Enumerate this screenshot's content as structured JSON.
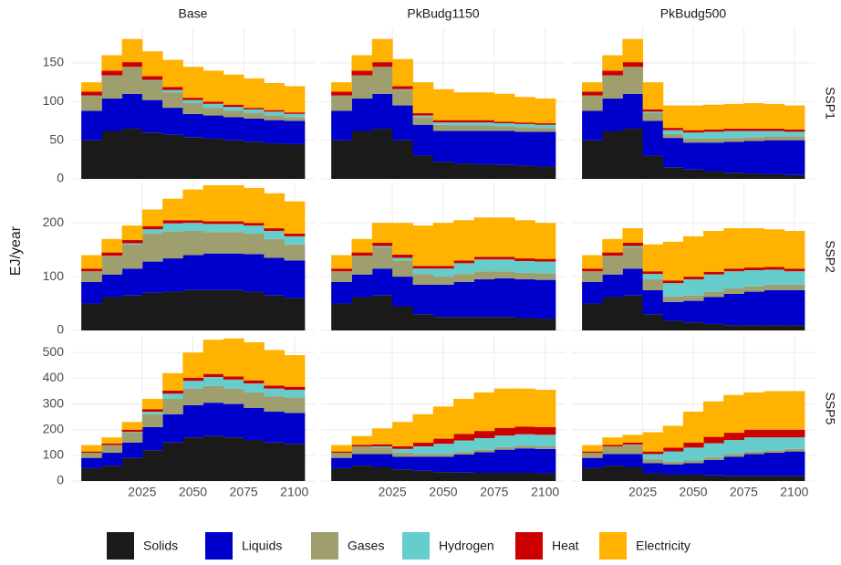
{
  "chart_data": {
    "type": "area",
    "step": true,
    "grid": true,
    "legend": "bottom",
    "ylabel": "EJ/year",
    "columns": [
      "Base",
      "PkBudg1150",
      "PkBudg500"
    ],
    "x": [
      2000,
      2010,
      2020,
      2030,
      2040,
      2050,
      2060,
      2070,
      2080,
      2090,
      2100
    ],
    "xlim": [
      1990,
      2110
    ],
    "xticks": [
      2025,
      2050,
      2075,
      2100
    ],
    "series": [
      {
        "name": "Solids",
        "color": "#1a1a1a"
      },
      {
        "name": "Liquids",
        "color": "#0000cd"
      },
      {
        "name": "Gases",
        "color": "#9e9e6e"
      },
      {
        "name": "Hydrogen",
        "color": "#66cdcd"
      },
      {
        "name": "Heat",
        "color": "#cd0000"
      },
      {
        "name": "Electricity",
        "color": "#ffb300"
      }
    ],
    "rows": [
      {
        "label": "SSP1",
        "ylim": [
          0,
          196
        ],
        "yticks": [
          0,
          50,
          100,
          150
        ],
        "panels": [
          [
            [
              50,
              62,
              65,
              60,
              57,
              54,
              52,
              50,
              48,
              46,
              45
            ],
            [
              38,
              42,
              45,
              42,
              35,
              30,
              30,
              30,
              30,
              30,
              30
            ],
            [
              20,
              30,
              35,
              25,
              20,
              14,
              10,
              8,
              7,
              6,
              5
            ],
            [
              0,
              0,
              0,
              1,
              3,
              4,
              5,
              5,
              5,
              5,
              4
            ],
            [
              5,
              6,
              6,
              5,
              4,
              3,
              3,
              3,
              2,
              2,
              2
            ],
            [
              12,
              20,
              30,
              32,
              35,
              40,
              40,
              39,
              38,
              35,
              34
            ]
          ],
          [
            [
              50,
              62,
              65,
              50,
              30,
              22,
              20,
              19,
              18,
              17,
              16
            ],
            [
              38,
              42,
              45,
              45,
              40,
              40,
              42,
              43,
              44,
              44,
              45
            ],
            [
              20,
              30,
              35,
              20,
              10,
              8,
              7,
              7,
              6,
              6,
              5
            ],
            [
              0,
              0,
              0,
              1,
              2,
              3,
              4,
              4,
              4,
              4,
              4
            ],
            [
              5,
              6,
              6,
              4,
              3,
              3,
              3,
              3,
              2,
              2,
              2
            ],
            [
              12,
              20,
              30,
              35,
              40,
              40,
              36,
              36,
              36,
              33,
              32
            ]
          ],
          [
            [
              50,
              62,
              65,
              30,
              15,
              12,
              10,
              8,
              7,
              6,
              5
            ],
            [
              38,
              42,
              45,
              45,
              38,
              35,
              37,
              40,
              42,
              44,
              45
            ],
            [
              20,
              30,
              35,
              10,
              5,
              5,
              5,
              5,
              5,
              5,
              5
            ],
            [
              0,
              0,
              0,
              2,
              5,
              8,
              9,
              9,
              8,
              7,
              6
            ],
            [
              5,
              6,
              6,
              3,
              3,
              3,
              3,
              3,
              3,
              3,
              3
            ],
            [
              12,
              20,
              30,
              35,
              29,
              32,
              32,
              32,
              33,
              32,
              31
            ]
          ]
        ]
      },
      {
        "label": "SSP2",
        "ylim": [
          0,
          275
        ],
        "yticks": [
          0,
          100,
          200
        ],
        "panels": [
          [
            [
              50,
              62,
              65,
              70,
              72,
              75,
              75,
              75,
              72,
              65,
              60
            ],
            [
              40,
              42,
              50,
              58,
              62,
              65,
              68,
              68,
              70,
              70,
              70
            ],
            [
              20,
              35,
              45,
              52,
              50,
              45,
              40,
              40,
              38,
              35,
              30
            ],
            [
              0,
              0,
              2,
              8,
              15,
              15,
              15,
              15,
              15,
              15,
              15
            ],
            [
              5,
              6,
              6,
              6,
              6,
              5,
              5,
              5,
              5,
              5,
              5
            ],
            [
              25,
              25,
              27,
              31,
              40,
              57,
              67,
              67,
              65,
              65,
              60
            ]
          ],
          [
            [
              50,
              62,
              65,
              45,
              30,
              25,
              25,
              25,
              25,
              23,
              22
            ],
            [
              40,
              42,
              50,
              55,
              55,
              60,
              65,
              70,
              72,
              72,
              72
            ],
            [
              20,
              35,
              40,
              30,
              20,
              15,
              15,
              15,
              13,
              12,
              12
            ],
            [
              0,
              0,
              2,
              5,
              10,
              15,
              20,
              22,
              22,
              22,
              22
            ],
            [
              5,
              6,
              6,
              6,
              5,
              5,
              5,
              5,
              5,
              5,
              5
            ],
            [
              25,
              25,
              37,
              59,
              75,
              80,
              75,
              73,
              73,
              71,
              67
            ]
          ],
          [
            [
              50,
              62,
              65,
              30,
              18,
              15,
              12,
              10,
              10,
              10,
              10
            ],
            [
              40,
              42,
              50,
              45,
              35,
              40,
              50,
              58,
              62,
              65,
              65
            ],
            [
              20,
              35,
              40,
              20,
              10,
              10,
              10,
              10,
              10,
              10,
              10
            ],
            [
              0,
              0,
              2,
              10,
              25,
              30,
              32,
              32,
              30,
              28,
              25
            ],
            [
              5,
              6,
              6,
              5,
              5,
              5,
              5,
              5,
              5,
              5,
              5
            ],
            [
              25,
              25,
              27,
              50,
              72,
              75,
              76,
              75,
              73,
              70,
              70
            ]
          ]
        ]
      },
      {
        "label": "SSP5",
        "ylim": [
          0,
          565
        ],
        "yticks": [
          0,
          100,
          200,
          300,
          400,
          500
        ],
        "panels": [
          [
            [
              50,
              60,
              90,
              120,
              150,
              170,
              175,
              170,
              160,
              150,
              145
            ],
            [
              40,
              50,
              60,
              90,
              110,
              125,
              130,
              130,
              125,
              120,
              120
            ],
            [
              20,
              30,
              40,
              50,
              60,
              65,
              65,
              60,
              60,
              60,
              60
            ],
            [
              0,
              0,
              2,
              10,
              20,
              30,
              35,
              35,
              35,
              30,
              30
            ],
            [
              5,
              6,
              8,
              10,
              12,
              12,
              12,
              12,
              12,
              12,
              12
            ],
            [
              25,
              24,
              30,
              40,
              68,
              98,
              133,
              148,
              148,
              138,
              123
            ]
          ],
          [
            [
              50,
              60,
              55,
              45,
              40,
              35,
              33,
              32,
              32,
              32,
              30
            ],
            [
              40,
              45,
              50,
              50,
              55,
              60,
              70,
              80,
              90,
              95,
              95
            ],
            [
              20,
              30,
              25,
              15,
              10,
              10,
              10,
              10,
              10,
              10,
              10
            ],
            [
              0,
              0,
              5,
              15,
              30,
              40,
              45,
              45,
              45,
              45,
              45
            ],
            [
              5,
              6,
              8,
              10,
              15,
              20,
              25,
              28,
              30,
              30,
              30
            ],
            [
              25,
              34,
              62,
              95,
              110,
              125,
              137,
              150,
              153,
              148,
              145
            ]
          ],
          [
            [
              50,
              60,
              55,
              30,
              25,
              25,
              22,
              20,
              20,
              20,
              20
            ],
            [
              40,
              45,
              50,
              40,
              40,
              45,
              60,
              75,
              85,
              90,
              95
            ],
            [
              20,
              30,
              35,
              15,
              10,
              10,
              10,
              10,
              10,
              10,
              10
            ],
            [
              0,
              0,
              2,
              20,
              40,
              50,
              55,
              55,
              55,
              50,
              45
            ],
            [
              5,
              6,
              8,
              10,
              15,
              20,
              25,
              28,
              30,
              30,
              30
            ],
            [
              25,
              29,
              30,
              75,
              85,
              120,
              138,
              147,
              145,
              150,
              150
            ]
          ]
        ]
      }
    ]
  }
}
